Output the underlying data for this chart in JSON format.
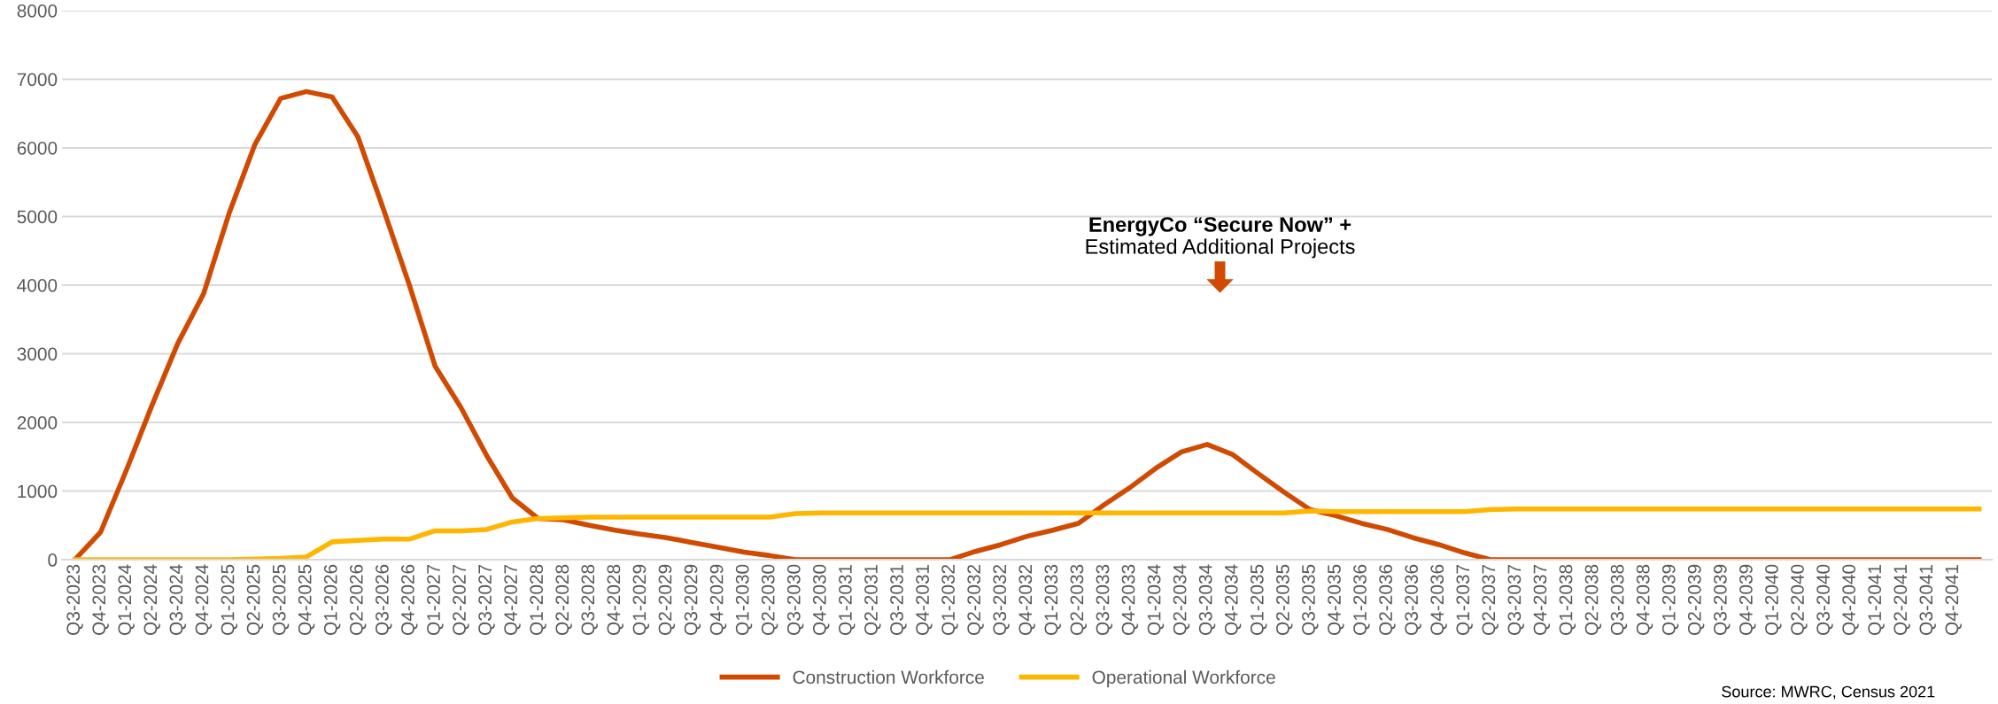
{
  "chart_data": {
    "type": "line",
    "categories": [
      "Q3-2023",
      "Q4-2023",
      "Q1-2024",
      "Q2-2024",
      "Q3-2024",
      "Q4-2024",
      "Q1-2025",
      "Q2-2025",
      "Q3-2025",
      "Q4-2025",
      "Q1-2026",
      "Q2-2026",
      "Q3-2026",
      "Q4-2026",
      "Q1-2027",
      "Q2-2027",
      "Q3-2027",
      "Q4-2027",
      "Q1-2028",
      "Q2-2028",
      "Q3-2028",
      "Q4-2028",
      "Q1-2029",
      "Q2-2029",
      "Q3-2029",
      "Q4-2029",
      "Q1-2030",
      "Q2-2030",
      "Q3-2030",
      "Q4-2030",
      "Q1-2031",
      "Q2-2031",
      "Q3-2031",
      "Q4-2031",
      "Q1-2032",
      "Q2-2032",
      "Q3-2032",
      "Q4-2032",
      "Q1-2033",
      "Q2-2033",
      "Q3-2033",
      "Q4-2033",
      "Q1-2034",
      "Q2-2034",
      "Q3-2034",
      "Q4-2034",
      "Q1-2035",
      "Q2-2035",
      "Q3-2035",
      "Q4-2035",
      "Q1-2036",
      "Q2-2036",
      "Q3-2036",
      "Q4-2036",
      "Q1-2037",
      "Q2-2037",
      "Q3-2037",
      "Q4-2037",
      "Q1-2038",
      "Q2-2038",
      "Q3-2038",
      "Q4-2038",
      "Q1-2039",
      "Q2-2039",
      "Q3-2039",
      "Q4-2039",
      "Q1-2040",
      "Q2-2040",
      "Q3-2040",
      "Q4-2040",
      "Q1-2041",
      "Q2-2041",
      "Q3-2041",
      "Q4-2041",
      null
    ],
    "series": [
      {
        "name": "Construction Workforce",
        "color": "#d04a02",
        "values": [
          0,
          400,
          1300,
          2250,
          3150,
          3870,
          5050,
          6050,
          6720,
          6820,
          6740,
          6160,
          5100,
          4000,
          2820,
          2220,
          1520,
          900,
          600,
          580,
          500,
          430,
          370,
          320,
          250,
          180,
          110,
          60,
          0,
          0,
          0,
          0,
          0,
          0,
          0,
          120,
          220,
          340,
          430,
          530,
          800,
          1050,
          1330,
          1570,
          1680,
          1530,
          1250,
          980,
          730,
          640,
          530,
          440,
          320,
          220,
          100,
          0,
          0,
          0,
          0,
          0,
          0,
          0,
          0,
          0,
          0,
          0,
          0,
          0,
          0,
          0,
          0,
          0,
          0,
          0,
          0
        ]
      },
      {
        "name": "Operational Workforce",
        "color": "#ffb600",
        "values": [
          0,
          0,
          0,
          0,
          0,
          0,
          0,
          10,
          20,
          40,
          260,
          280,
          300,
          300,
          420,
          420,
          440,
          550,
          600,
          610,
          620,
          620,
          620,
          620,
          620,
          620,
          620,
          620,
          670,
          680,
          680,
          680,
          680,
          680,
          680,
          680,
          680,
          680,
          680,
          680,
          680,
          680,
          680,
          680,
          680,
          680,
          680,
          680,
          710,
          700,
          700,
          700,
          700,
          700,
          700,
          730,
          740,
          740,
          740,
          740,
          740,
          740,
          740,
          740,
          740,
          740,
          740,
          740,
          740,
          740,
          740,
          740,
          740,
          740,
          740
        ]
      }
    ],
    "ylim": [
      0,
      8000
    ],
    "yticks": [
      0,
      1000,
      2000,
      3000,
      4000,
      5000,
      6000,
      7000,
      8000
    ],
    "grid": "y",
    "legend": "bottom",
    "marker": "none",
    "line_style": "solid",
    "annotations": [
      "EnergyCo “Secure Now” +\nEstimated Additional Projects",
      "Source: MWRC, Census 2021"
    ]
  }
}
